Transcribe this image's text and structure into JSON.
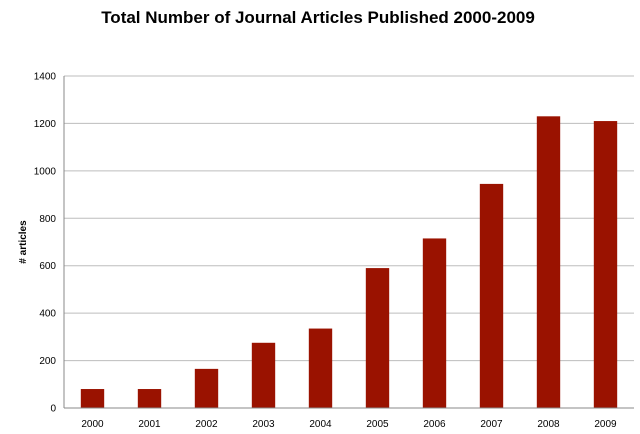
{
  "chart_data": {
    "type": "bar",
    "title": "Total Number of Journal Articles Published 2000-2009",
    "xlabel": "",
    "ylabel": "# articles",
    "categories": [
      "2000",
      "2001",
      "2002",
      "2003",
      "2004",
      "2005",
      "2006",
      "2007",
      "2008",
      "2009"
    ],
    "values": [
      80,
      80,
      165,
      275,
      335,
      590,
      715,
      945,
      1230,
      1210
    ],
    "ylim": [
      0,
      1400
    ],
    "yticks": [
      0,
      200,
      400,
      600,
      800,
      1000,
      1200,
      1400
    ],
    "grid": true,
    "legend": "none",
    "bar_color": "#9a1200"
  }
}
